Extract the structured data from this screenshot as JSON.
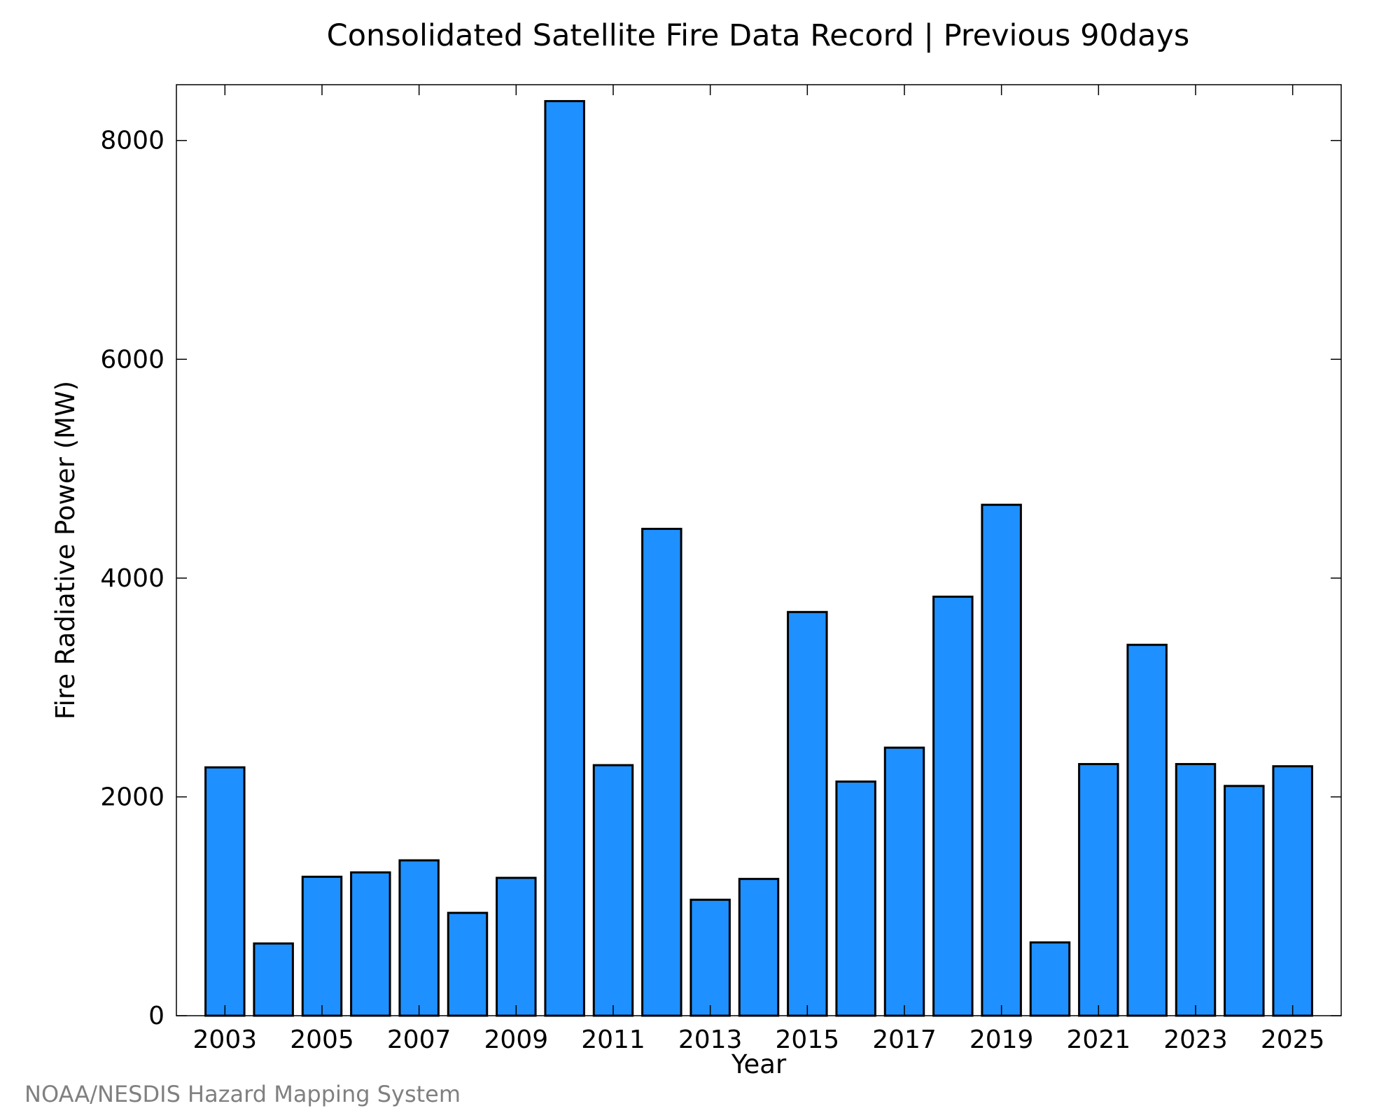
{
  "chart_data": {
    "type": "bar",
    "title": "Consolidated Satellite Fire Data Record | Previous 90days",
    "xlabel": "Year",
    "ylabel": "Fire Radiative Power (MW)",
    "categories": [
      "2003",
      "2004",
      "2005",
      "2006",
      "2007",
      "2008",
      "2009",
      "2010",
      "2011",
      "2012",
      "2013",
      "2014",
      "2015",
      "2016",
      "2017",
      "2018",
      "2019",
      "2020",
      "2021",
      "2022",
      "2023",
      "2024",
      "2025"
    ],
    "values": [
      2270,
      660,
      1270,
      1310,
      1420,
      940,
      1260,
      8360,
      2290,
      4450,
      1060,
      1250,
      3690,
      2140,
      2450,
      3830,
      4670,
      670,
      2300,
      3390,
      2300,
      2100,
      2280
    ],
    "ylim": [
      0,
      8510
    ],
    "yticks": [
      0,
      2000,
      4000,
      6000,
      8000
    ],
    "xticks": [
      "2003",
      "2005",
      "2007",
      "2009",
      "2011",
      "2013",
      "2015",
      "2017",
      "2019",
      "2021",
      "2023",
      "2025"
    ],
    "grid": false,
    "bar_color": "#1e90ff"
  },
  "source_note": "NOAA/NESDIS Hazard Mapping System"
}
